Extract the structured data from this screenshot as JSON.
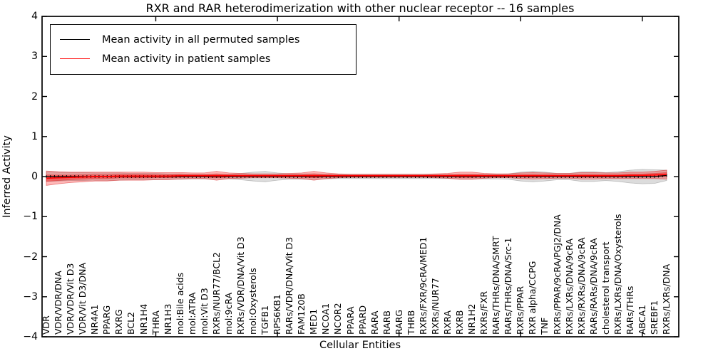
{
  "title": "RXR and RAR heterodimerization with other nuclear receptor -- 16 samples",
  "axes": {
    "xlabel": "Cellular Entities",
    "ylabel": "Inferred Activity",
    "yticks": [
      4,
      3,
      2,
      1,
      0,
      -1,
      -2,
      -3,
      -4
    ],
    "ytick_labels": [
      "4",
      "3",
      "2",
      "1",
      "0",
      "−1",
      "−2",
      "−3",
      "−4"
    ],
    "x_major_ticks": [
      10,
      20,
      30,
      40,
      50
    ]
  },
  "legend": {
    "items": [
      {
        "label": "Mean activity in all permuted samples",
        "color": "#000000"
      },
      {
        "label": "Mean activity in patient samples",
        "color": "#ff0000"
      }
    ]
  },
  "chart_data": {
    "type": "line",
    "title": "RXR and RAR heterodimerization with other nuclear receptor -- 16 samples",
    "samples": 16,
    "xlabel": "Cellular Entities",
    "ylabel": "Inferred Activity",
    "ylim": [
      -4,
      4
    ],
    "grid": false,
    "legend_position": "upper left",
    "categories": [
      "VDR",
      "VDR/VDR/DNA",
      "VDR/VDR/Vit D3",
      "VDR/Vit D3/DNA",
      "NR4A1",
      "PPARG",
      "RXRG",
      "BCL2",
      "NR1H4",
      "THRA",
      "NR1H3",
      "mol:Bile acids",
      "mol:ATRA",
      "mol:Vit D3",
      "RXRs/NUR77/BCL2",
      "mol:9cRA",
      "RXRs/VDR/DNA/Vit D3",
      "mol:Oxysterols",
      "TGFB1",
      "RPS6KB1",
      "RARs/VDR/DNA/Vit D3",
      "FAM120B",
      "MED1",
      "NCOA1",
      "NCOR2",
      "PPARA",
      "PPARD",
      "RARA",
      "RARB",
      "RARG",
      "THRB",
      "RXRs/FXR/9cRA/MED1",
      "RXRs/NUR77",
      "RXRA",
      "RXRB",
      "NR1H2",
      "RXRs/FXR",
      "RARs/THRs/DNA/SMRT",
      "RARs/THRs/DNA/Src-1",
      "RXRs/PPAR",
      "RXR alpha/CCPG",
      "TNF",
      "RXRs/PPAR/9cRA/PGJ2/DNA",
      "RXRs/LXRs/DNA/9cRA",
      "RXRs/RXRs/DNA/9cRA",
      "RARs/RARs/DNA/9cRA",
      "cholesterol transport",
      "RXRs/LXRs/DNA/Oxysterols",
      "RARs/THRs",
      "ABCA1",
      "SREBF1",
      "RXRs/LXRs/DNA"
    ],
    "series": [
      {
        "name": "Mean activity in all permuted samples",
        "color": "#000000",
        "band_fill": "rgba(130,130,130,0.28)",
        "band_edge": "rgba(130,130,130,0.45)",
        "mean": [
          0,
          0,
          0,
          0,
          0,
          0,
          0,
          0,
          0,
          0,
          0,
          0,
          0,
          0,
          0,
          0,
          0,
          0,
          0,
          0,
          0,
          0,
          0,
          0,
          0,
          0,
          0,
          0,
          0,
          0,
          0,
          0,
          0,
          0,
          0,
          0,
          0,
          0,
          0,
          0,
          0,
          0,
          0,
          0,
          0,
          0,
          0,
          0,
          0,
          0,
          0,
          0.03
        ],
        "std": [
          0.12,
          0.11,
          0.1,
          0.1,
          0.09,
          0.09,
          0.09,
          0.08,
          0.08,
          0.08,
          0.07,
          0.07,
          0.06,
          0.06,
          0.06,
          0.06,
          0.08,
          0.11,
          0.13,
          0.09,
          0.07,
          0.07,
          0.07,
          0.06,
          0.05,
          0.05,
          0.05,
          0.05,
          0.05,
          0.05,
          0.05,
          0.05,
          0.05,
          0.05,
          0.06,
          0.06,
          0.06,
          0.06,
          0.07,
          0.11,
          0.13,
          0.11,
          0.08,
          0.08,
          0.12,
          0.12,
          0.1,
          0.12,
          0.16,
          0.18,
          0.17,
          0.13
        ]
      },
      {
        "name": "Mean activity in patient samples",
        "color": "#ff0000",
        "band_fill": "rgba(255,0,0,0.28)",
        "band_edge": "rgba(215,35,35,0.55)",
        "mean": [
          -0.04,
          -0.03,
          -0.02,
          -0.01,
          0,
          0,
          0.01,
          0.01,
          0.01,
          0.01,
          0.01,
          0.02,
          0.02,
          0.02,
          0.02,
          0.02,
          0.02,
          0.02,
          0.02,
          0.02,
          0.02,
          0.02,
          0.02,
          0.02,
          0.02,
          0.02,
          0.02,
          0.02,
          0.02,
          0.02,
          0.02,
          0.02,
          0.02,
          0.02,
          0.02,
          0.02,
          0.02,
          0.02,
          0.02,
          0.02,
          0.02,
          0.02,
          0.02,
          0.02,
          0.02,
          0.02,
          0.02,
          0.02,
          0.03,
          0.03,
          0.04,
          0.05
        ],
        "std": [
          0.18,
          0.15,
          0.13,
          0.12,
          0.11,
          0.11,
          0.1,
          0.1,
          0.1,
          0.09,
          0.09,
          0.08,
          0.07,
          0.07,
          0.11,
          0.07,
          0.06,
          0.05,
          0.05,
          0.05,
          0.06,
          0.07,
          0.11,
          0.07,
          0.05,
          0.04,
          0.04,
          0.04,
          0.04,
          0.04,
          0.04,
          0.04,
          0.05,
          0.06,
          0.09,
          0.09,
          0.06,
          0.05,
          0.05,
          0.07,
          0.08,
          0.07,
          0.06,
          0.06,
          0.08,
          0.08,
          0.07,
          0.07,
          0.08,
          0.08,
          0.09,
          0.11
        ]
      }
    ]
  }
}
